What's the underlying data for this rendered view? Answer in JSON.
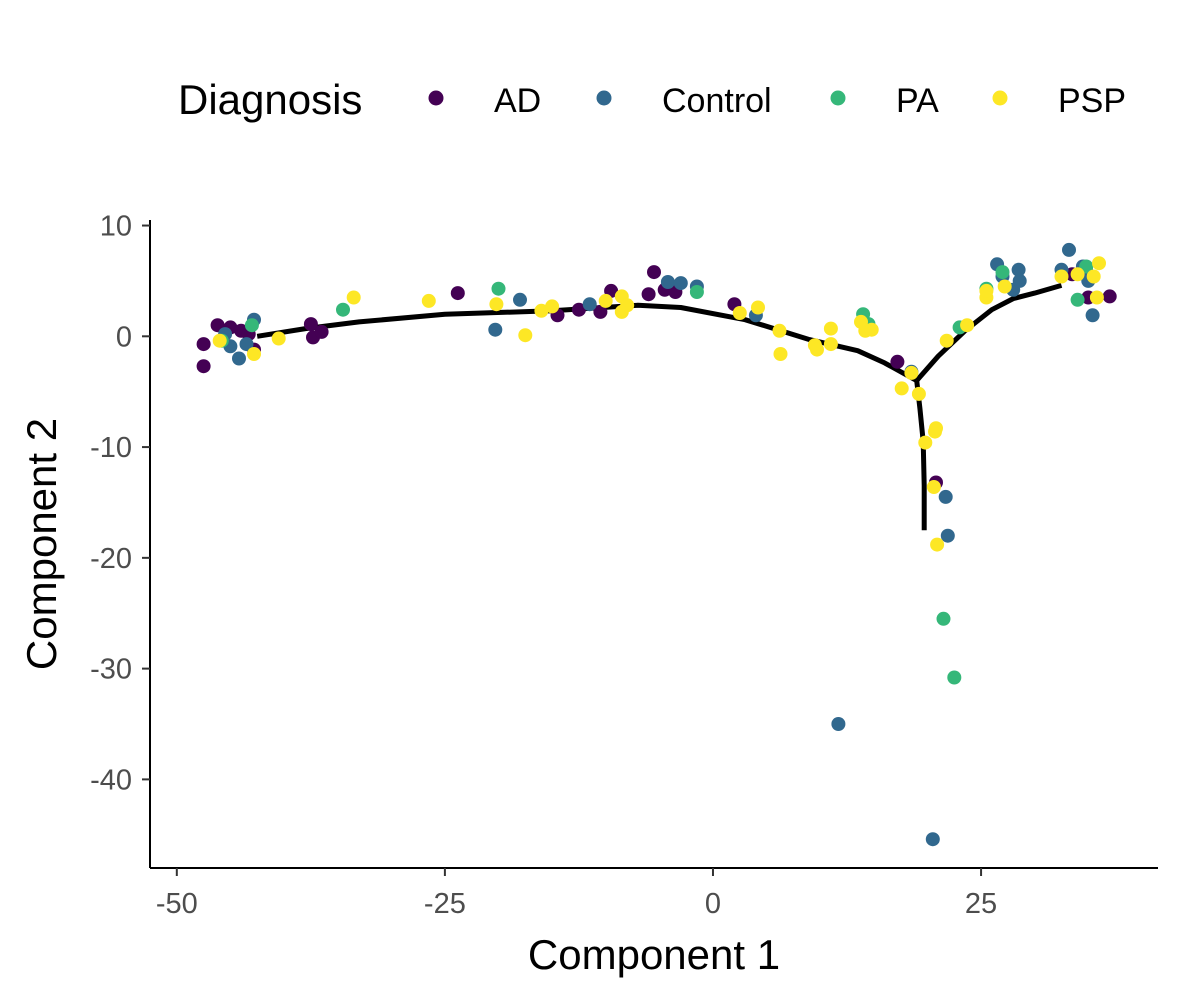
{
  "chart_data": {
    "type": "scatter",
    "title": "",
    "xlabel": "Component 1",
    "ylabel": "Component 2",
    "xlim": [
      -52.5,
      41.5
    ],
    "ylim": [
      -48,
      10.5
    ],
    "xticks": [
      {
        "value": -50,
        "label": "-50"
      },
      {
        "value": -25,
        "label": "-25"
      },
      {
        "value": 0,
        "label": "0"
      },
      {
        "value": 25,
        "label": "25"
      }
    ],
    "yticks": [
      {
        "value": 10,
        "label": "10"
      },
      {
        "value": 0,
        "label": "0"
      },
      {
        "value": -10,
        "label": "-10"
      },
      {
        "value": -20,
        "label": "-20"
      },
      {
        "value": -30,
        "label": "-30"
      },
      {
        "value": -40,
        "label": "-40"
      }
    ],
    "grid": false,
    "legend": {
      "title": "Diagnosis",
      "position": "top",
      "items": [
        {
          "key": "AD",
          "label": "AD",
          "color": "#440154"
        },
        {
          "key": "Control",
          "label": "Control",
          "color": "#31688E"
        },
        {
          "key": "PA",
          "label": "PA",
          "color": "#35B779"
        },
        {
          "key": "PSP",
          "label": "PSP",
          "color": "#FDE725"
        }
      ]
    },
    "trajectory": {
      "color": "#000000",
      "main": [
        [
          -42.5,
          0.0
        ],
        [
          -38,
          0.7
        ],
        [
          -33,
          1.3
        ],
        [
          -25,
          2.0
        ],
        [
          -15,
          2.3
        ],
        [
          -7,
          2.8
        ],
        [
          -3,
          2.6
        ],
        [
          3,
          1.5
        ],
        [
          9,
          -0.3
        ],
        [
          13.5,
          -1.3
        ],
        [
          16,
          -2.4
        ],
        [
          19,
          -4.0
        ]
      ],
      "upper_branch": [
        [
          19,
          -4.0
        ],
        [
          21,
          -1.8
        ],
        [
          23.5,
          0.5
        ],
        [
          26,
          2.4
        ],
        [
          28,
          3.4
        ],
        [
          30,
          3.9
        ],
        [
          32.5,
          4.6
        ]
      ],
      "lower_branch": [
        [
          19,
          -4.0
        ],
        [
          19.3,
          -6.5
        ],
        [
          19.6,
          -9.5
        ],
        [
          19.7,
          -13.5
        ],
        [
          19.7,
          -17.5
        ]
      ]
    },
    "series": [
      {
        "name": "AD",
        "points": [
          [
            -47.5,
            -0.7
          ],
          [
            -47.5,
            -2.7
          ],
          [
            -46.2,
            1.0
          ],
          [
            -45.0,
            0.8
          ],
          [
            -44.0,
            0.5
          ],
          [
            -43.3,
            0.2
          ],
          [
            -42.8,
            -1.2
          ],
          [
            -37.5,
            1.1
          ],
          [
            -37.3,
            -0.1
          ],
          [
            -36.5,
            0.4
          ],
          [
            -23.8,
            3.9
          ],
          [
            -14.5,
            1.9
          ],
          [
            -12.5,
            2.4
          ],
          [
            -10.5,
            2.2
          ],
          [
            -9.5,
            4.1
          ],
          [
            -6.0,
            3.8
          ],
          [
            -5.5,
            5.8
          ],
          [
            -4.5,
            4.2
          ],
          [
            -3.5,
            4.0
          ],
          [
            2.0,
            2.9
          ],
          [
            17.2,
            -2.3
          ],
          [
            20.8,
            -13.2
          ],
          [
            33.5,
            5.6
          ],
          [
            35.0,
            3.5
          ],
          [
            37.0,
            3.6
          ]
        ]
      },
      {
        "name": "Control",
        "points": [
          [
            -45.5,
            0.2
          ],
          [
            -45.0,
            -0.9
          ],
          [
            -44.2,
            -2.0
          ],
          [
            -43.5,
            -0.7
          ],
          [
            -42.8,
            1.5
          ],
          [
            -20.3,
            0.6
          ],
          [
            -18.0,
            3.3
          ],
          [
            -11.5,
            2.9
          ],
          [
            -4.2,
            4.9
          ],
          [
            -3.0,
            4.8
          ],
          [
            -1.5,
            4.5
          ],
          [
            4.0,
            1.9
          ],
          [
            11.7,
            -35.0
          ],
          [
            18.5,
            -3.2
          ],
          [
            20.5,
            -45.4
          ],
          [
            21.7,
            -14.5
          ],
          [
            21.9,
            -18.0
          ],
          [
            26.5,
            6.5
          ],
          [
            27.0,
            5.4
          ],
          [
            28.0,
            4.2
          ],
          [
            28.5,
            6.0
          ],
          [
            28.6,
            5.0
          ],
          [
            32.5,
            6.0
          ],
          [
            33.2,
            7.8
          ],
          [
            34.5,
            6.3
          ],
          [
            34.8,
            5.9
          ],
          [
            35.0,
            5.0
          ],
          [
            35.4,
            1.9
          ]
        ]
      },
      {
        "name": "PA",
        "points": [
          [
            -45.8,
            -0.4
          ],
          [
            -43.0,
            1.0
          ],
          [
            -34.5,
            2.4
          ],
          [
            -20.0,
            4.3
          ],
          [
            -1.5,
            4.0
          ],
          [
            14.0,
            2.0
          ],
          [
            14.5,
            1.1
          ],
          [
            21.5,
            -25.5
          ],
          [
            22.5,
            -30.8
          ],
          [
            23.0,
            0.8
          ],
          [
            25.5,
            4.3
          ],
          [
            27.0,
            5.8
          ],
          [
            34.0,
            3.3
          ],
          [
            34.8,
            6.3
          ]
        ]
      },
      {
        "name": "PSP",
        "points": [
          [
            -46.0,
            -0.4
          ],
          [
            -42.8,
            -1.6
          ],
          [
            -40.5,
            -0.2
          ],
          [
            -33.5,
            3.5
          ],
          [
            -26.5,
            3.2
          ],
          [
            -20.2,
            2.9
          ],
          [
            -17.5,
            0.1
          ],
          [
            -16.0,
            2.3
          ],
          [
            -15.0,
            2.7
          ],
          [
            -10.0,
            3.2
          ],
          [
            -8.5,
            2.2
          ],
          [
            -8.5,
            3.6
          ],
          [
            -8.0,
            2.8
          ],
          [
            2.5,
            2.1
          ],
          [
            4.2,
            2.6
          ],
          [
            6.2,
            0.5
          ],
          [
            6.3,
            -1.6
          ],
          [
            9.5,
            -0.8
          ],
          [
            9.7,
            -1.2
          ],
          [
            11.0,
            0.7
          ],
          [
            11.0,
            -0.7
          ],
          [
            13.8,
            1.3
          ],
          [
            14.2,
            0.5
          ],
          [
            14.8,
            0.6
          ],
          [
            17.6,
            -4.7
          ],
          [
            18.5,
            -3.3
          ],
          [
            19.2,
            -5.2
          ],
          [
            19.8,
            -9.6
          ],
          [
            20.7,
            -8.6
          ],
          [
            20.8,
            -8.3
          ],
          [
            20.6,
            -13.6
          ],
          [
            20.9,
            -18.8
          ],
          [
            21.8,
            -0.4
          ],
          [
            23.7,
            1.0
          ],
          [
            25.5,
            3.5
          ],
          [
            25.5,
            4.1
          ],
          [
            27.2,
            4.5
          ],
          [
            32.5,
            5.4
          ],
          [
            34.0,
            5.6
          ],
          [
            35.5,
            5.4
          ],
          [
            35.8,
            3.5
          ],
          [
            36.0,
            6.6
          ]
        ]
      }
    ]
  }
}
